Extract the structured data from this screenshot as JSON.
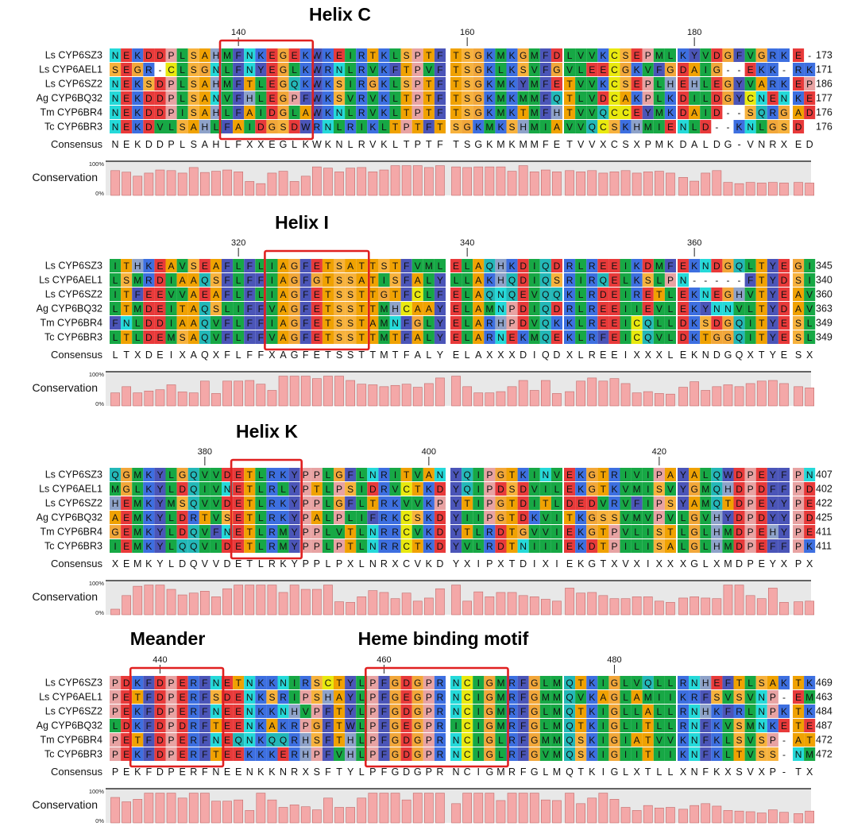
{
  "colors": {
    "A": "#f0a202",
    "C": "#e9e90f",
    "D": "#e83a3a",
    "E": "#e83a3a",
    "F": "#4b55b8",
    "G": "#f2a73a",
    "H": "#8ea2c9",
    "I": "#17a845",
    "K": "#3d6fe0",
    "L": "#17a845",
    "M": "#17a845",
    "N": "#25d9d9",
    "P": "#e8a3a3",
    "Q": "#23b8b8",
    "R": "#3d6fe0",
    "S": "#f7b23d",
    "T": "#f0a202",
    "V": "#17a845",
    "W": "#4b55b8",
    "Y": "#4b55b8",
    "X": "#ffffff",
    "-": "#ffffff",
    "bar_fill": "#f4a8a8",
    "bar_stroke": "#c26a6a",
    "box_stroke": "#e02020"
  },
  "labels": {
    "consensus": "Consensus",
    "conservation": "Conservation",
    "pct_top": "100%",
    "pct_bottom": "0%"
  },
  "blocks": [
    {
      "headings": [
        "Helix C"
      ],
      "ticks": [
        {
          "label": "140",
          "col": 11
        },
        {
          "label": "160",
          "col": 31
        },
        {
          "label": "180",
          "col": 51
        }
      ],
      "boxes": [
        [
          10,
          17
        ]
      ],
      "rows": [
        {
          "name": "Ls CYP6SZ3",
          "seq": "NEKDDPLSAHMFNKEGEKWKEIRTKLSPTFTSGKMKGMFDLVVKCSEPMLKYVDGFVGRKE-",
          "end": "173"
        },
        {
          "name": "Ls CYP6AEL1",
          "seq": "SEGR-CLSGNLFNYEGLKWRNLRVKFTPVFTSGKLKSVFGVLEECGKVFGDAIG--EKK-RK",
          "end": "171"
        },
        {
          "name": "Ls CYP6SZ2",
          "seq": "NEKSDPLSAHMFTLEGQKWKSIRGKLSPTFTSGKMKYMFETVVKCSEPLHEHLEGYVARKEP",
          "end": "186"
        },
        {
          "name": "Ag CYP6BQ32",
          "seq": "NEKDDPLSANVFHLEGPFWKSVRVKLTPTFTSGKMKMMFQTLVDCAKPLKDILDGYCNENKE",
          "end": "177"
        },
        {
          "name": "Tm CYP6BR4",
          "seq": "NEKDDPISAHLFAIDGLAWKNLRVKLTPTFTSGKMKTMFHTVVQCCEYMKDAID--SQRGAD",
          "end": "176"
        },
        {
          "name": "Tc CYP6BR3",
          "seq": "NEKDVLSAHLFAIDGSDWRNLRIKLTPTFTSGKMKSHMIAVVQCSKHMIENLD--KNLGSD",
          "end": "176"
        }
      ],
      "consensus": "NEKDDPLSAHLFXXEGLKWKNLRVKLTPTFTSGKMKMMFETVVXCSXPMKDALDG-VNRXED",
      "conservation": [
        80,
        75,
        62,
        72,
        82,
        80,
        72,
        90,
        74,
        78,
        82,
        76,
        45,
        38,
        72,
        78,
        45,
        62,
        92,
        88,
        76,
        88,
        90,
        76,
        82,
        96,
        96,
        96,
        90,
        96,
        92,
        90,
        92,
        92,
        92,
        78,
        96,
        76,
        82,
        76,
        80,
        76,
        80,
        72,
        76,
        80,
        72,
        76,
        78,
        72,
        58,
        46,
        72,
        80,
        42,
        38,
        42,
        40,
        42,
        40,
        42,
        40
      ]
    },
    {
      "headings": [
        "Helix I"
      ],
      "ticks": [
        {
          "label": "320",
          "col": 11
        },
        {
          "label": "340",
          "col": 31
        },
        {
          "label": "360",
          "col": 51
        }
      ],
      "boxes": [
        [
          14,
          22
        ]
      ],
      "rows": [
        {
          "name": "Ls CYP6SZ3",
          "seq": "ITHKEAVSEAFLFLIAGFETSATTSTFVMLELAQHKDIQDRLREEIKDMFEKNDGQLTYEGI",
          "end": "345"
        },
        {
          "name": "Ls CYP6AEL1",
          "seq": "LSMRDIAAQSFLFFIAGFGTSSATISFALYLLAKHQDIQSRIRQELKSLPN-----FTYDSI",
          "end": "340"
        },
        {
          "name": "Ls CYP6SZ2",
          "seq": "ITFEEVVAEAFLFLIAGFETSSTTGTFCLFELAQNQEVQQKLRDEIRETLEKNEGHVTYEAV",
          "end": "360"
        },
        {
          "name": "Ag CYP6BQ32",
          "seq": "LTMDEITAQSLIFFVAGFETSSTTMHCAAYELAMNPDIQDRLREEIIEVLEKYNNVLTYDAV",
          "end": "363"
        },
        {
          "name": "Tm CYP6BR4",
          "seq": "FNLDDIAAQVFLFFIAGFETSSTAMNFGLYELARHPDVQKKLREEICQLLDKSDGQITYESL",
          "end": "349"
        },
        {
          "name": "Tc CYP6BR3",
          "seq": "LTLDEMSAQVFLFFVAGFETSSTTMTFALYELARNEKMQEKLRFEICQVLDKTGGQITYESL",
          "end": "349"
        }
      ],
      "consensus": "LTXDEIXAQXFLFFXAGFETSSTTMTFALYELAXXXDIQDXLREEIXXXLEKNDGQXTYESX",
      "conservation": [
        42,
        62,
        42,
        48,
        52,
        68,
        45,
        42,
        80,
        40,
        80,
        80,
        82,
        70,
        50,
        96,
        96,
        96,
        88,
        96,
        96,
        82,
        70,
        68,
        62,
        66,
        70,
        60,
        72,
        90,
        96,
        62,
        42,
        42,
        46,
        62,
        82,
        50,
        82,
        40,
        46,
        80,
        90,
        80,
        88,
        72,
        42,
        46,
        40,
        38,
        60,
        78,
        50,
        62,
        68,
        62,
        72,
        80,
        82,
        72,
        62,
        58
      ]
    },
    {
      "headings": [
        "Helix K"
      ],
      "ticks": [
        {
          "label": "380",
          "col": 8
        },
        {
          "label": "400",
          "col": 28
        },
        {
          "label": "420",
          "col": 48
        }
      ],
      "boxes": [
        [
          11,
          16
        ]
      ],
      "rows": [
        {
          "name": "Ls CYP6SZ3",
          "seq": "QGMKYLGQVVDETLRKYPPLGFLNRITVANYQIPGTKINVEKGTRIVIPAYALQWDPEYFPN",
          "end": "407"
        },
        {
          "name": "Ls CYP6AEL1",
          "seq": "MGLKYLDQIVNETLRLYPTLPSIDRVCTKDYQIPDSDVILEKGTKVMISVYGMQHDPDFFPD",
          "end": "402"
        },
        {
          "name": "Ls CYP6SZ2",
          "seq": "HEMKYMSQVVDETLRKYPPLGFLTRKVVKPYTIPGTDITLDEDVRVFIPSYAMQTDPEYYPE",
          "end": "422"
        },
        {
          "name": "Ag CYP6BQ32",
          "seq": "AEMKYLDRTVSETLRKYPALPLIFRKCSKDYIIPGTDKVITKGSSVMVPVLGVHYDPDYYPD",
          "end": "425"
        },
        {
          "name": "Tm CYP6BR4",
          "seq": "GEMKYLDQVFNETLRMYPPLVTLNRRCVKDYTLRDTGVVIEKGTPVLISTLGLHMDPEHYPE",
          "end": "411"
        },
        {
          "name": "Tc CYP6BR3",
          "seq": "IEMKYLQQVIDETLRMYPPLPTLNRRCTKDYVLRDTNIIIEKDTPILISALGLHMDPEFFPK",
          "end": "411"
        }
      ],
      "consensus": "XEMKYLDQVVDETLRKYPPLPXLNRXCVKDYXIPXTDIXIEKGTXVXIXXXGLXMDPEYXPX",
      "conservation": [
        18,
        62,
        92,
        96,
        96,
        82,
        64,
        70,
        76,
        58,
        84,
        96,
        96,
        96,
        96,
        72,
        96,
        82,
        82,
        96,
        42,
        40,
        58,
        78,
        72,
        52,
        70,
        44,
        54,
        84,
        96,
        44,
        74,
        58,
        72,
        72,
        62,
        58,
        50,
        44,
        86,
        70,
        72,
        62,
        52,
        52,
        58,
        58,
        44,
        40,
        54,
        58,
        54,
        52,
        96,
        96,
        62,
        52,
        86,
        40,
        42,
        44
      ]
    },
    {
      "headings": [
        "Meander",
        "Heme binding motif"
      ],
      "ticks": [
        {
          "label": "440",
          "col": 4
        },
        {
          "label": "460",
          "col": 24
        },
        {
          "label": "480",
          "col": 44
        }
      ],
      "boxes": [
        [
          2,
          9
        ],
        [
          23,
          34
        ]
      ],
      "rows": [
        {
          "name": "Ls CYP6SZ3",
          "seq": "PDKFDPERFNETNKKNIRSCTYLPFGDGPRNCIGMRFGLMQTKIGLVQLLRNHEFTLSAKTK",
          "end": "469"
        },
        {
          "name": "Ls CYP6AEL1",
          "seq": "PETFDPERFSDENKSRIPSHAYLPFGEGPRNCIGMRFGMMQVKAGLAMIIKRFSVSVNP-EM",
          "end": "463"
        },
        {
          "name": "Ls CYP6SZ2",
          "seq": "PEKFDPERFNEENKKNHVPFTYLPFGDGPRNCIGMRFGLMQTKIGLLALLRNHKFRLNPKTK",
          "end": "484"
        },
        {
          "name": "Ag CYP6BQ32",
          "seq": "LDKFDPDRFTEENKAKRPGFTWLPFGEGPRICIGMRFGLMQTKIGLITLLRNFKVSMNKETE",
          "end": "487"
        },
        {
          "name": "Tm CYP6BR4",
          "seq": "PETFDPERFNEQNKQQRHSFTHLPFGDGPRNCIGLRFGMMQSKIGIATVVKNFKLSVSP-AT",
          "end": "472"
        },
        {
          "name": "Tc CYP6BR3",
          "seq": "PEKFDPERFTEEKKKERHPFVHLPFGDGPRNCIGLRFGVMQSKIGIITIIKNFKLTVSS-NM",
          "end": "472"
        }
      ],
      "consensus": "PEKFDPERFNEENKKNRXSFTYLPFGDGPRNCIGMRFGLMQTKIGLXTLLXNFKXSVXP-TX",
      "conservation": [
        82,
        68,
        76,
        96,
        96,
        96,
        80,
        96,
        96,
        70,
        70,
        74,
        40,
        96,
        74,
        50,
        58,
        52,
        42,
        80,
        50,
        50,
        80,
        96,
        96,
        96,
        74,
        96,
        96,
        96,
        62,
        96,
        96,
        96,
        72,
        96,
        96,
        96,
        74,
        72,
        96,
        62,
        80,
        96,
        76,
        50,
        40,
        56,
        48,
        50,
        44,
        56,
        62,
        54,
        40,
        38,
        36,
        32,
        42,
        34,
        30,
        38
      ]
    }
  ]
}
